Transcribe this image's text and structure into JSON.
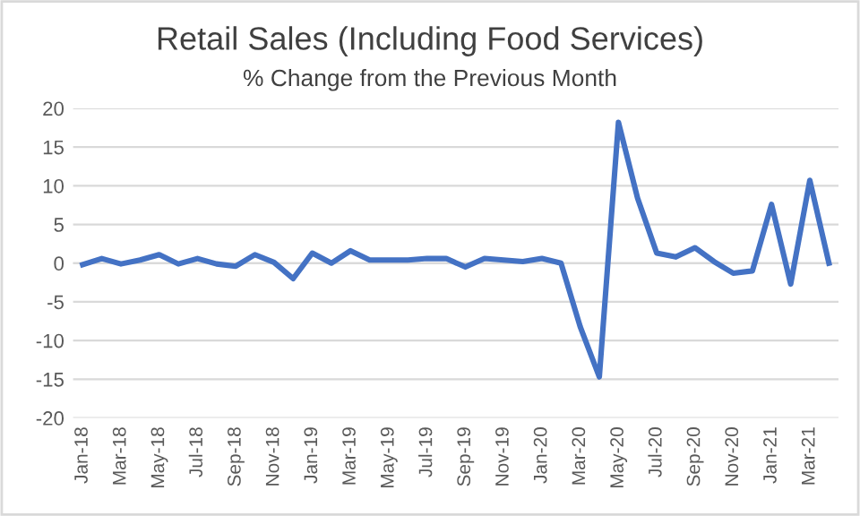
{
  "chart_data": {
    "type": "line",
    "title": "Retail Sales (Including Food Services)",
    "subtitle": "% Change from the Previous Month",
    "categories": [
      "Jan-18",
      null,
      "Mar-18",
      null,
      "May-18",
      null,
      "Jul-18",
      null,
      "Sep-18",
      null,
      "Nov-18",
      null,
      "Jan-19",
      null,
      "Mar-19",
      null,
      "May-19",
      null,
      "Jul-19",
      null,
      "Sep-19",
      null,
      "Nov-19",
      null,
      "Jan-20",
      null,
      "Mar-20",
      null,
      "May-20",
      null,
      "Jul-20",
      null,
      "Sep-20",
      null,
      "Nov-20",
      null,
      "Jan-21",
      null,
      "Mar-21",
      null
    ],
    "series": [
      {
        "color": "#4472c4",
        "values": [
          -0.2,
          0.6,
          -0.1,
          0.4,
          1.1,
          -0.1,
          0.6,
          -0.1,
          -0.4,
          1.1,
          0.1,
          -2.0,
          1.3,
          0.0,
          1.6,
          0.4,
          0.4,
          0.4,
          0.6,
          0.6,
          -0.5,
          0.6,
          0.4,
          0.2,
          0.6,
          0.0,
          -8.2,
          -14.7,
          18.2,
          8.4,
          1.3,
          0.8,
          2.0,
          0.2,
          -1.3,
          -1.0,
          7.6,
          -2.7,
          10.7,
          0.0
        ]
      }
    ],
    "ylim": [
      -20,
      20
    ],
    "yticks": [
      -20,
      -15,
      -10,
      -5,
      0,
      5,
      10,
      15,
      20
    ],
    "grid": "y",
    "marker": "none",
    "line_style": "solid"
  }
}
